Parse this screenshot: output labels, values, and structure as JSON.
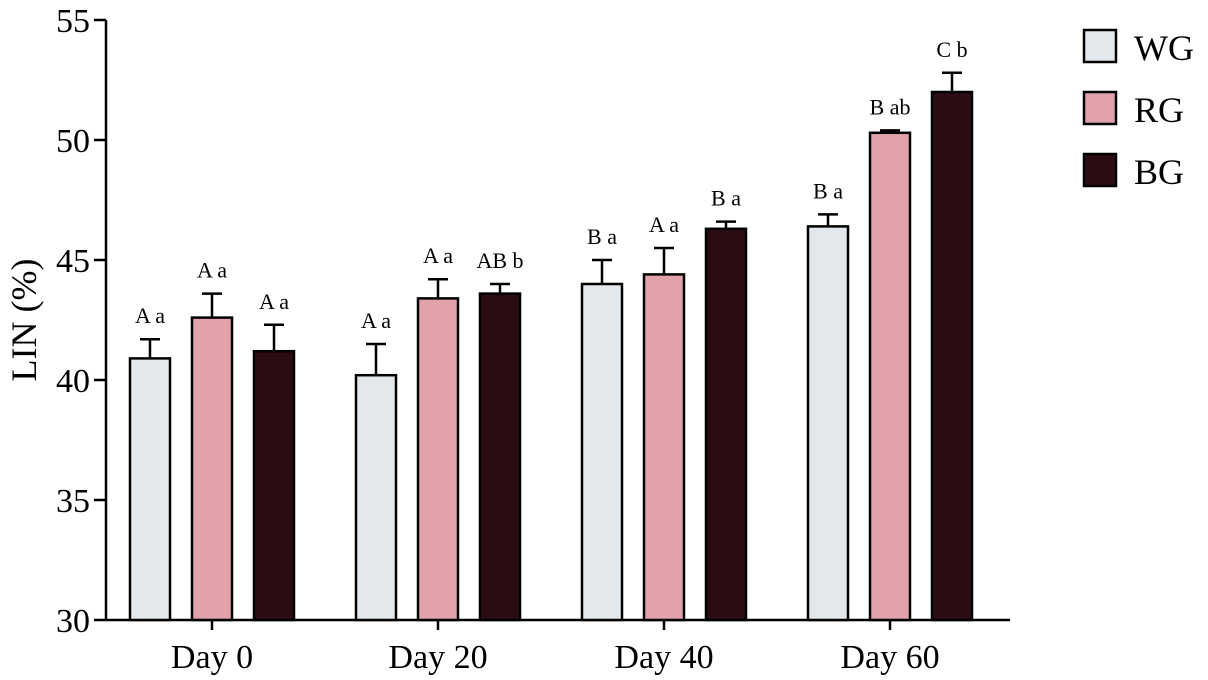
{
  "chart_data": {
    "type": "bar",
    "ylabel": "LIN (%)",
    "xlabel": "",
    "ylim": [
      30,
      55
    ],
    "yticks": [
      30,
      35,
      40,
      45,
      50,
      55
    ],
    "categories": [
      "Day 0",
      "Day 20",
      "Day 40",
      "Day 60"
    ],
    "legend_position": "top-right",
    "series": [
      {
        "name": "WG",
        "color": "#e3e8ec",
        "values": [
          40.9,
          40.2,
          44.0,
          46.4
        ],
        "errors": [
          0.8,
          1.3,
          1.0,
          0.5
        ],
        "labels": [
          "A a",
          "A a",
          "B a",
          "B a"
        ]
      },
      {
        "name": "RG",
        "color": "#e1a2aa",
        "values": [
          42.6,
          43.4,
          44.4,
          50.3
        ],
        "errors": [
          1.0,
          0.8,
          1.1,
          0.1
        ],
        "labels": [
          "A a",
          "A a",
          "A a",
          "B ab"
        ]
      },
      {
        "name": "BG",
        "color": "#2b0c13",
        "values": [
          41.2,
          43.6,
          46.3,
          52.0
        ],
        "errors": [
          1.1,
          0.4,
          0.3,
          0.8
        ],
        "labels": [
          "A a",
          "AB b",
          "B a",
          "C b"
        ]
      }
    ]
  }
}
